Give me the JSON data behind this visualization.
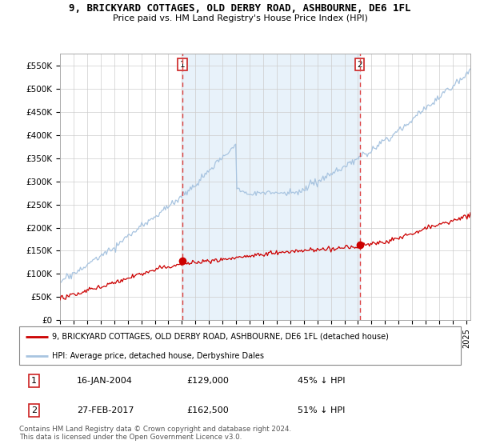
{
  "title": "9, BRICKYARD COTTAGES, OLD DERBY ROAD, ASHBOURNE, DE6 1FL",
  "subtitle": "Price paid vs. HM Land Registry's House Price Index (HPI)",
  "ylabel_ticks": [
    "£0",
    "£50K",
    "£100K",
    "£150K",
    "£200K",
    "£250K",
    "£300K",
    "£350K",
    "£400K",
    "£450K",
    "£500K",
    "£550K"
  ],
  "ytick_values": [
    0,
    50000,
    100000,
    150000,
    200000,
    250000,
    300000,
    350000,
    400000,
    450000,
    500000,
    550000
  ],
  "ylim": [
    0,
    575000
  ],
  "xlim_start": 1995.0,
  "xlim_end": 2025.3,
  "hpi_color": "#a8c4e0",
  "hpi_fill_color": "#daeaf7",
  "price_color": "#cc0000",
  "vline_color": "#dd4444",
  "marker1_date": 2004.04,
  "marker1_hpi": 229000,
  "marker1_price": 129000,
  "marker1_label": "1",
  "marker2_date": 2017.12,
  "marker2_hpi": 335000,
  "marker2_price": 162500,
  "marker2_label": "2",
  "legend_line1": "9, BRICKYARD COTTAGES, OLD DERBY ROAD, ASHBOURNE, DE6 1FL (detached house)",
  "legend_line2": "HPI: Average price, detached house, Derbyshire Dales",
  "table_row1": [
    "1",
    "16-JAN-2004",
    "£129,000",
    "45% ↓ HPI"
  ],
  "table_row2": [
    "2",
    "27-FEB-2017",
    "£162,500",
    "51% ↓ HPI"
  ],
  "footnote": "Contains HM Land Registry data © Crown copyright and database right 2024.\nThis data is licensed under the Open Government Licence v3.0.",
  "background_color": "#ffffff",
  "grid_color": "#cccccc"
}
